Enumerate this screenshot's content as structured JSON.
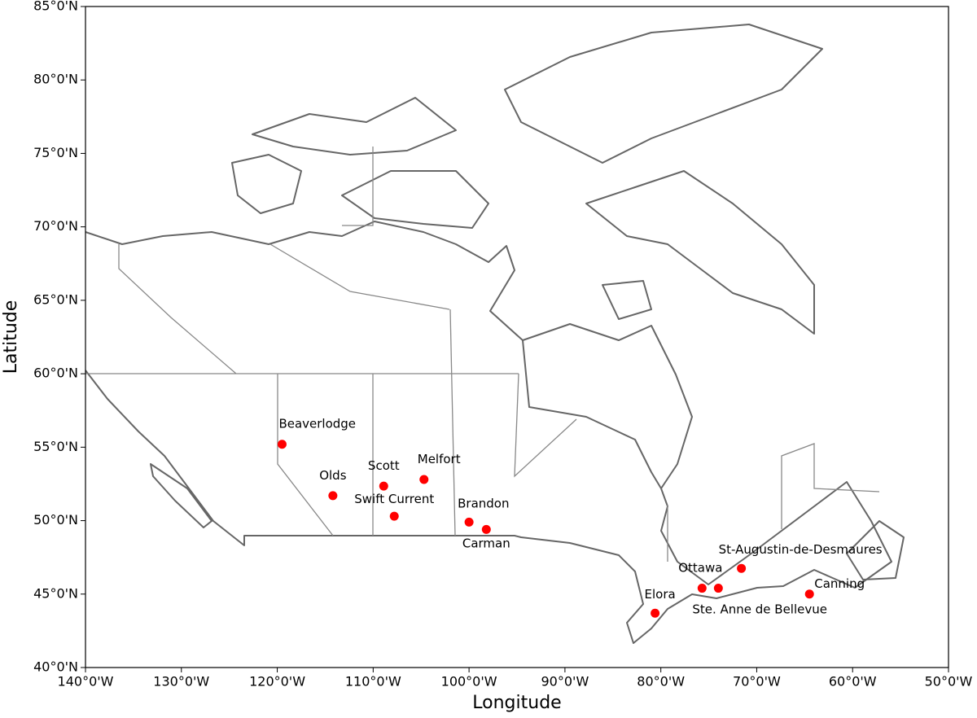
{
  "chart_data": {
    "type": "scatter",
    "x_label": "Longitude",
    "y_label": "Latitude",
    "xlim": [
      -140,
      -50
    ],
    "ylim": [
      40,
      85
    ],
    "xticks": [
      {
        "value": -140,
        "label": "140°0'W"
      },
      {
        "value": -130,
        "label": "130°0'W"
      },
      {
        "value": -120,
        "label": "120°0'W"
      },
      {
        "value": -110,
        "label": "110°0'W"
      },
      {
        "value": -100,
        "label": "100°0'W"
      },
      {
        "value": -90,
        "label": "90°0'W"
      },
      {
        "value": -80,
        "label": "80°0'W"
      },
      {
        "value": -70,
        "label": "70°0'W"
      },
      {
        "value": -60,
        "label": "60°0'W"
      },
      {
        "value": -50,
        "label": "50°0'W"
      }
    ],
    "yticks": [
      {
        "value": 40,
        "label": "40°0'N"
      },
      {
        "value": 45,
        "label": "45°0'N"
      },
      {
        "value": 50,
        "label": "50°0'N"
      },
      {
        "value": 55,
        "label": "55°0'N"
      },
      {
        "value": 60,
        "label": "60°0'N"
      },
      {
        "value": 65,
        "label": "65°0'N"
      },
      {
        "value": 70,
        "label": "70°0'N"
      },
      {
        "value": 75,
        "label": "75°0'N"
      },
      {
        "value": 80,
        "label": "80°0'N"
      },
      {
        "value": 85,
        "label": "85°0'N"
      }
    ],
    "series": [
      {
        "color": "#ff0000",
        "labels": [
          "Beaverlodge",
          "Olds",
          "Scott",
          "Melfort",
          "Swift Current",
          "Brandon",
          "Carman",
          "Ottawa",
          "Ste. Anne de Bellevue",
          "St-Augustin-de-Desmaures",
          "Canning",
          "Elora"
        ],
        "x": [
          -119.5,
          -114.2,
          -108.9,
          -104.7,
          -107.8,
          -100.0,
          -98.2,
          -75.7,
          -74.0,
          -71.6,
          -64.5,
          -80.6
        ],
        "values": [
          55.2,
          51.7,
          52.35,
          52.8,
          50.3,
          49.9,
          49.4,
          45.4,
          45.4,
          46.75,
          45.0,
          43.7
        ]
      }
    ]
  }
}
